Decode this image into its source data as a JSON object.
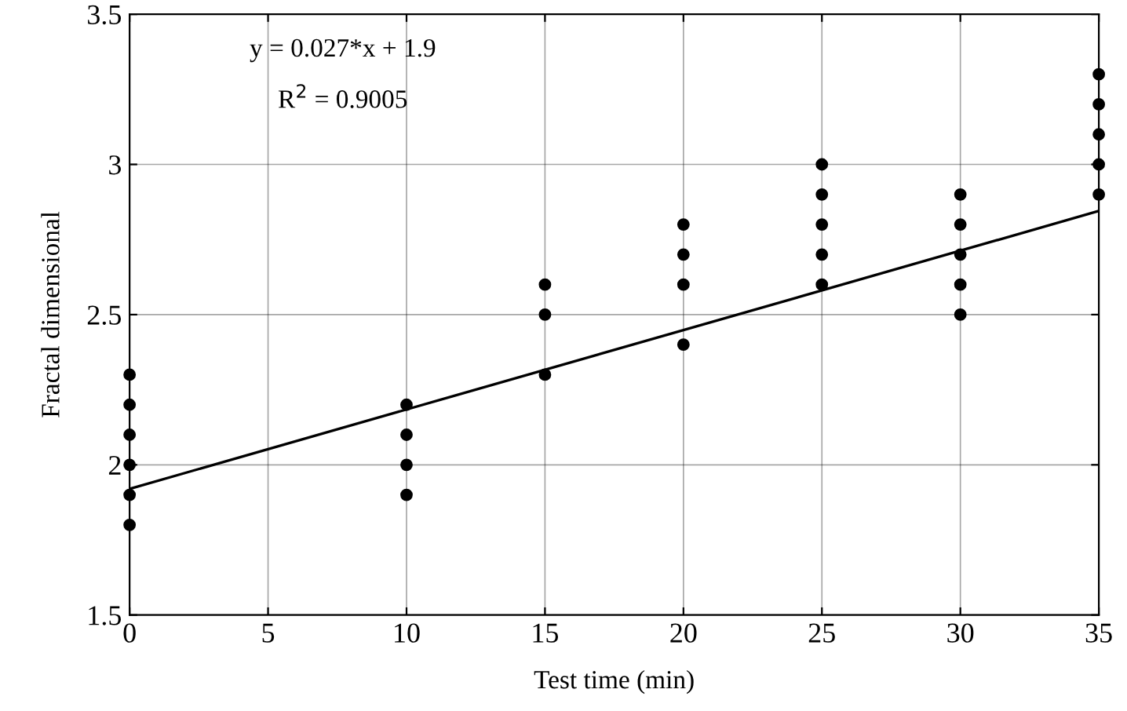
{
  "chart_data": {
    "type": "scatter",
    "xlabel": "Test time (min)",
    "ylabel": "Fractal dimensional",
    "xlim": [
      0,
      35
    ],
    "ylim": [
      1.5,
      3.5
    ],
    "xticks": [
      0,
      5,
      10,
      15,
      20,
      25,
      30,
      35
    ],
    "yticks": [
      1.5,
      2,
      2.5,
      3,
      3.5
    ],
    "grid": true,
    "annotations": [
      "y = 0.027*x + 1.9",
      "R$^{2}$ = 0.9005"
    ],
    "series": [
      {
        "marker": "circle",
        "color": "#000000",
        "x": [
          0,
          0,
          0,
          0,
          0,
          0,
          10,
          10,
          10,
          10,
          15,
          15,
          15,
          20,
          20,
          20,
          20,
          25,
          25,
          25,
          25,
          25,
          30,
          30,
          30,
          30,
          30,
          35,
          35,
          35,
          35,
          35
        ],
        "values": [
          1.8,
          1.9,
          2.0,
          2.1,
          2.2,
          2.3,
          1.9,
          2.0,
          2.1,
          2.2,
          2.3,
          2.5,
          2.6,
          2.4,
          2.6,
          2.7,
          2.8,
          2.6,
          2.7,
          2.8,
          2.9,
          3.0,
          2.5,
          2.6,
          2.7,
          2.8,
          2.9,
          2.9,
          3.0,
          3.1,
          3.2,
          3.3
        ]
      },
      {
        "type": "line",
        "marker": "none",
        "color": "#000000",
        "x": [
          0,
          35
        ],
        "values": [
          1.92,
          2.845
        ]
      }
    ]
  }
}
